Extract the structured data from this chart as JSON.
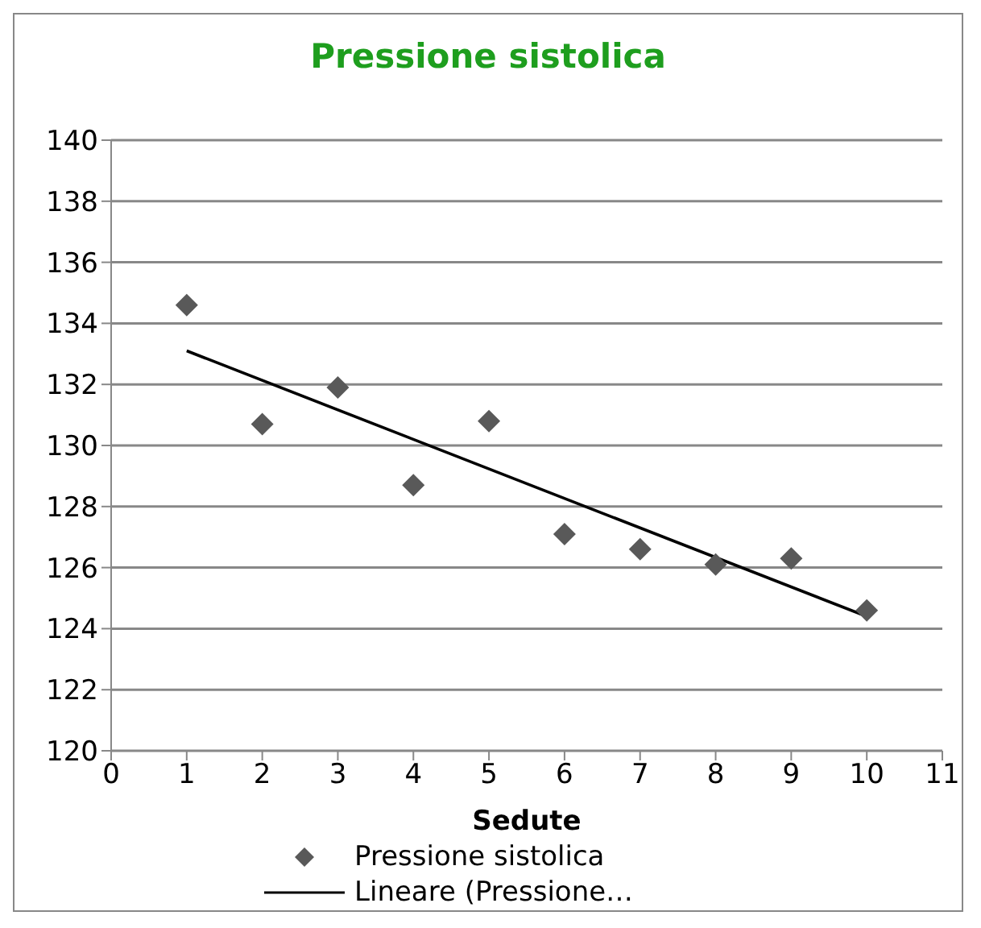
{
  "chart_data": {
    "type": "scatter",
    "title": "Pressione sistolica",
    "xlabel": "Sedute",
    "x": [
      1,
      2,
      3,
      4,
      5,
      6,
      7,
      8,
      9,
      10
    ],
    "series": [
      {
        "name": "Pressione sistolica",
        "color": "#595959",
        "marker": "diamond",
        "values": [
          134.6,
          130.7,
          131.9,
          128.7,
          130.8,
          127.1,
          126.6,
          126.1,
          126.3,
          124.6
        ]
      },
      {
        "name": "Lineare (Pressione…",
        "type": "line",
        "color": "#000000",
        "marker": "none",
        "x": [
          1,
          10
        ],
        "values": [
          133.1,
          124.4
        ]
      }
    ],
    "xlim": [
      0,
      11
    ],
    "xticks": [
      0,
      1,
      2,
      3,
      4,
      5,
      6,
      7,
      8,
      9,
      10,
      11
    ],
    "ylim": [
      120,
      140
    ],
    "yticks": [
      120,
      122,
      124,
      126,
      128,
      130,
      132,
      134,
      136,
      138,
      140
    ],
    "grid": "y",
    "legend": "bottom"
  }
}
